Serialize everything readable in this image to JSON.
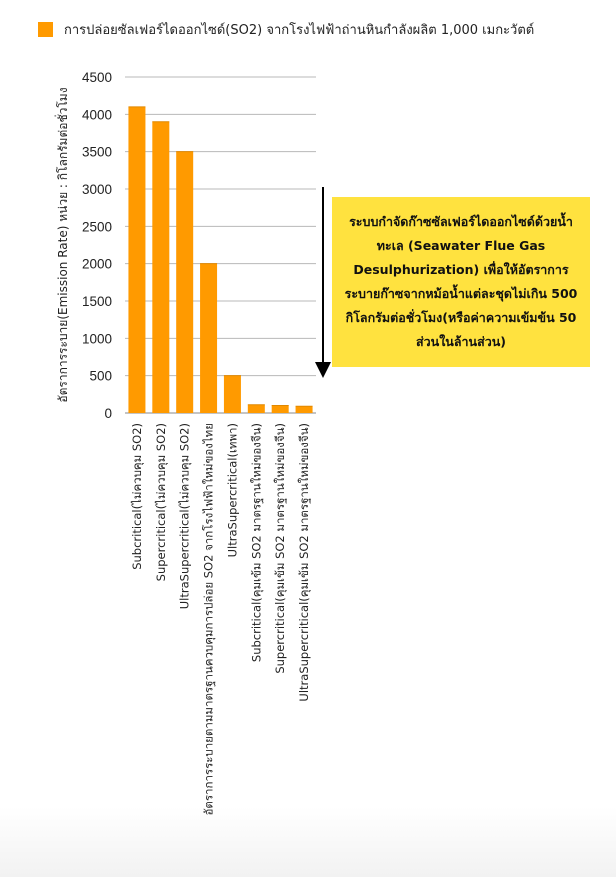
{
  "chart_data": {
    "type": "bar",
    "title": "การปล่อยซัลเฟอร์ไดออกไซด์(SO2) จากโรงไฟฟ้าถ่านหินกำลังผลิต 1,000 เมกะวัตต์",
    "legend_position": "top",
    "series": [
      {
        "name": "การปล่อยซัลเฟอร์ไดออกไซด์(SO2) จากโรงไฟฟ้าถ่านหินกำลังผลิต 1,000 เมกะวัตต์",
        "color": "#ff9a00",
        "values": [
          4100,
          3900,
          3500,
          2000,
          500,
          110,
          100,
          90
        ]
      }
    ],
    "categories": [
      "Subcritical(ไม่ควบคุม SO2)",
      "Supercritical(ไม่ควบคุม SO2)",
      "UltraSupercritical(ไม่ควบคุม SO2)",
      "อัตราการระบายตามมาตรฐานควบคุมการปล่อย SO2 จากโรงไฟฟ้าใหม่ของไทย",
      "UltraSupercritical(เทพา)",
      "Subcritical(คุมเข้ม SO2 มาตรฐานใหม่ของจีน)",
      "Supercritical(คุมเข้ม SO2 มาตรฐานใหม่ของจีน)",
      "UltraSupercritical(คุมเข้ม SO2 มาตรฐานใหม่ของจีน)"
    ],
    "ylabel": "อัตราการระบาย(Emission Rate) หน่วย : กิโลกรัมต่อชั่วโมง",
    "xlabel": "",
    "ylim": [
      0,
      4500
    ],
    "yticks": [
      0,
      500,
      1000,
      1500,
      2000,
      2500,
      3000,
      3500,
      4000,
      4500
    ],
    "grid": true,
    "annotation": {
      "text": "ระบบกำจัดก๊าซซัลเฟอร์ไดออกไซด์ด้วยน้ำทะเล (Seawater Flue Gas Desulphurization) เพื่อให้อัตราการระบายก๊าซจากหม้อน้ำแต่ละชุดไม่เกิน 500 กิโลกรัมต่อชั่วโมง(หรือค่าความเข้มข้น 50 ส่วนในล้านส่วน)",
      "background": "#ffe23f",
      "arrow": "down"
    }
  }
}
